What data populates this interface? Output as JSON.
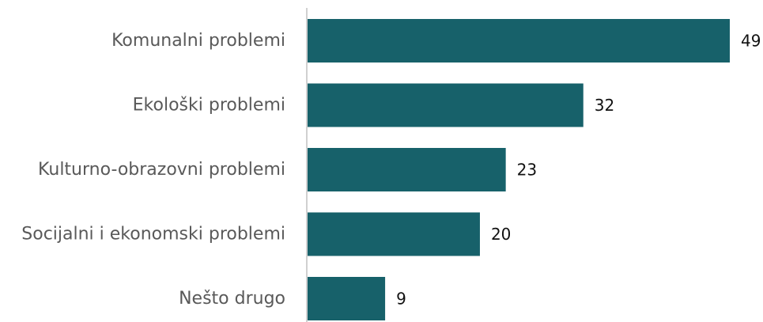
{
  "chart_data": {
    "type": "bar",
    "orientation": "horizontal",
    "categories": [
      "Komunalni problemi",
      "Ekološki problemi",
      "Kulturno-obrazovni problemi",
      "Socijalni i ekonomski problemi",
      "Nešto drugo"
    ],
    "values": [
      49,
      32,
      23,
      20,
      9
    ],
    "value_labels": [
      "49",
      "32",
      "23",
      "20",
      "9"
    ],
    "xlim": [
      0,
      49
    ],
    "grid": false,
    "bar_color": "#17616a",
    "axis_color": "#d0d0d0"
  }
}
